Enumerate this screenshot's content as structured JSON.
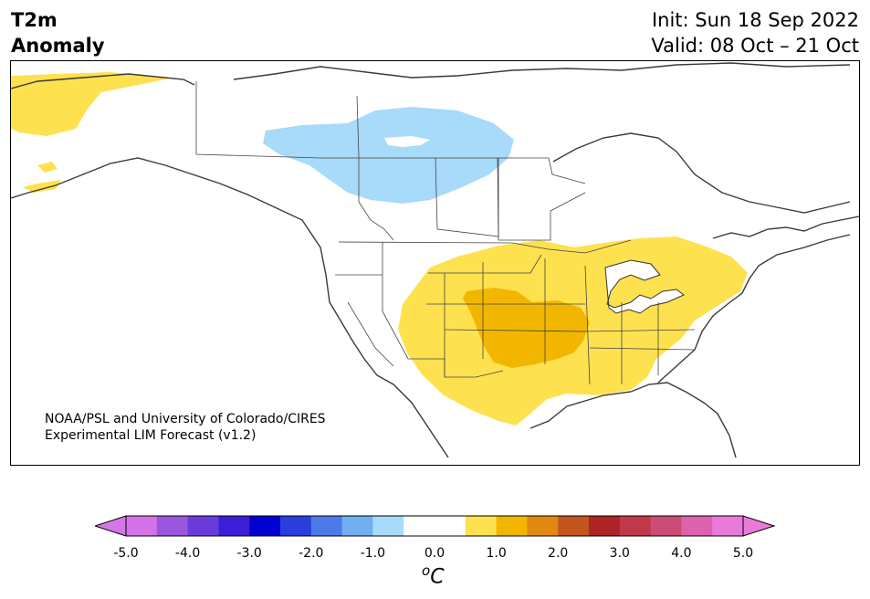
{
  "header": {
    "title_line1": "T2m",
    "title_line2": "Anomaly",
    "init": "Init: Sun 18 Sep 2022",
    "valid": "Valid: 08 Oct – 21 Oct"
  },
  "credit": {
    "line1": "NOAA/PSL and University of Colorado/CIRES",
    "line2": "Experimental LIM Forecast (v1.2)"
  },
  "colorbar": {
    "unit_base": "C",
    "unit_sup": "o",
    "ticks": [
      "-5.0",
      "-4.0",
      "-3.0",
      "-2.0",
      "-1.0",
      "0.0",
      "1.0",
      "2.0",
      "3.0",
      "4.0",
      "5.0"
    ],
    "tick_values": [
      -5,
      -4,
      -3,
      -2,
      -1,
      0,
      1,
      2,
      3,
      4,
      5
    ],
    "range": [
      -5,
      5
    ],
    "step": 0.5,
    "extend": "both",
    "low_extend_color": "#d476e6",
    "high_extend_color": "#ea7ad9",
    "colors": [
      "#d472e7",
      "#9a56dd",
      "#6a3bdc",
      "#3b1fd6",
      "#0000d0",
      "#2a3ede",
      "#4d7ae8",
      "#72aff0",
      "#a8daf9",
      "#ffffff",
      "#ffffff",
      "#fee14f",
      "#f2b600",
      "#e08910",
      "#c4551e",
      "#ac2426",
      "#c03849",
      "#cc4c76",
      "#dc62ad",
      "#ea7ad9"
    ]
  },
  "map": {
    "region": "North America",
    "anomalies": [
      {
        "name": "cold-anomaly-canada",
        "value_range": [
          -1.0,
          -0.5
        ],
        "color": "#a8daf9"
      },
      {
        "name": "warm-anomaly-central-us",
        "value_range": [
          0.5,
          1.0
        ],
        "color": "#fee14f"
      },
      {
        "name": "warm-anomaly-southern-plains",
        "value_range": [
          1.0,
          1.5
        ],
        "color": "#f2b600"
      },
      {
        "name": "warm-anomaly-alaska",
        "value_range": [
          0.5,
          1.0
        ],
        "color": "#fee14f"
      }
    ]
  }
}
